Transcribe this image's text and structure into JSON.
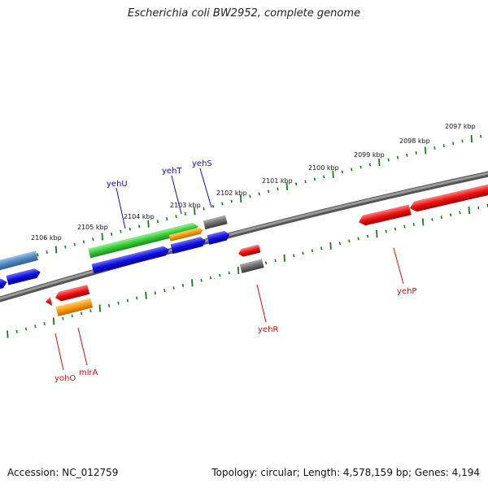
{
  "title": "Escherichia coli BW2952, complete genome",
  "accession_text": "Accession: NC_012759",
  "summary_text": "Topology: circular; Length: 4,578,159 bp; Genes: 4,194",
  "colors": {
    "backbone": "#808080",
    "ticks": "#1a7a1a",
    "label_forward": "#1010b0",
    "label_reverse": "#c81010",
    "gene_red": "#ee1111",
    "gene_blue": "#1010e0",
    "gene_green": "#33cc33",
    "gene_orange": "#ff9900",
    "gene_gray": "#6e6e6e",
    "gene_steel": "#4f86c0"
  },
  "scale_labels": [
    {
      "text": "2106 kbp"
    },
    {
      "text": "2105 kbp"
    },
    {
      "text": "2104 kbp"
    },
    {
      "text": "2103 kbp"
    },
    {
      "text": "2102 kbp"
    },
    {
      "text": "2101 kbp"
    },
    {
      "text": "2100 kbp"
    },
    {
      "text": "2099 kbp"
    },
    {
      "text": "2098 kbp"
    },
    {
      "text": "2097 kbp"
    }
  ],
  "gene_labels_forward": [
    "yehU",
    "yehT",
    "yehS"
  ],
  "gene_labels_reverse": [
    "yohO",
    "mlrA",
    "yehR",
    "yehP"
  ]
}
